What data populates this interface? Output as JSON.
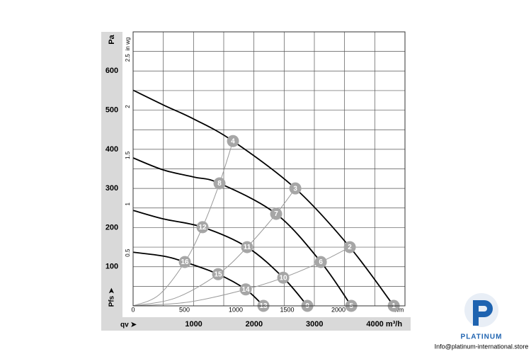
{
  "chart_data": {
    "type": "fan-curve",
    "y_label": "Pa",
    "y2_label": "in wg",
    "y_quantity": "Pfs ➤",
    "x_quantity": "qv ➤",
    "x2_label": "cfm",
    "xlim": [
      0,
      4500
    ],
    "ylim": [
      0,
      700
    ],
    "x2lim": [
      0,
      2648.6
    ],
    "y2lim": [
      0,
      2.81
    ],
    "xticks": [
      {
        "value": 1000,
        "label": "1000"
      },
      {
        "value": 2000,
        "label": "2000"
      },
      {
        "value": 3000,
        "label": "3000"
      },
      {
        "value": 4000,
        "label": "4000 m³/h"
      }
    ],
    "yticks": [
      100,
      200,
      300,
      400,
      500,
      600
    ],
    "x2ticks": [
      0,
      500,
      1000,
      1500,
      2000
    ],
    "y2ticks": [
      0.5,
      1,
      1.5,
      2,
      2.5
    ],
    "xgrid": [
      0,
      500,
      1000,
      1500,
      2000,
      2500,
      3000,
      3500,
      4000,
      4500
    ],
    "ygrid": [
      0,
      50,
      100,
      150,
      200,
      250,
      300,
      350,
      400,
      450,
      500,
      550,
      600,
      650,
      700
    ],
    "grid": true,
    "series": [
      {
        "color": "#000000",
        "x": [
          0,
          504,
          1008,
          1653,
          2685,
          3587,
          4314
        ],
        "values": [
          551,
          513,
          477,
          421,
          300,
          150,
          0
        ]
      },
      {
        "color": "#000000",
        "x": [
          0,
          504,
          1008,
          1430,
          2368,
          3107,
          3611
        ],
        "values": [
          378,
          347,
          329,
          313,
          235,
          112,
          0
        ]
      },
      {
        "color": "#000000",
        "x": [
          0,
          504,
          1149,
          1887,
          2485,
          2884
        ],
        "values": [
          244,
          222,
          201,
          150,
          72,
          0
        ]
      },
      {
        "color": "#000000",
        "x": [
          0,
          504,
          856,
          1407,
          1864,
          2157
        ],
        "values": [
          137,
          127,
          112,
          81,
          42,
          0
        ]
      }
    ],
    "system_curves": [
      {
        "color": "#9a9a9a",
        "x": [
          0,
          428,
          856,
          1149,
          1430,
          1653
        ],
        "values": [
          0,
          28,
          112,
          201,
          313,
          421
        ]
      },
      {
        "color": "#9a9a9a",
        "x": [
          0,
          700,
          1407,
          1887,
          2368,
          2685
        ],
        "values": [
          0,
          20,
          81,
          150,
          235,
          300
        ]
      },
      {
        "color": "#9a9a9a",
        "x": [
          0,
          930,
          1864,
          2485,
          3107,
          3587
        ],
        "values": [
          0,
          10,
          42,
          72,
          112,
          150
        ]
      }
    ],
    "marker_color": "#a6a6a6",
    "points": [
      {
        "label": "1",
        "x": 4314,
        "y": 0
      },
      {
        "label": "2",
        "x": 3587,
        "y": 150
      },
      {
        "label": "3",
        "x": 2685,
        "y": 300
      },
      {
        "label": "4",
        "x": 1653,
        "y": 421
      },
      {
        "label": "5",
        "x": 3611,
        "y": 0
      },
      {
        "label": "6",
        "x": 3107,
        "y": 112
      },
      {
        "label": "7",
        "x": 2368,
        "y": 235
      },
      {
        "label": "8",
        "x": 1430,
        "y": 313
      },
      {
        "label": "9",
        "x": 2884,
        "y": 0
      },
      {
        "label": "10",
        "x": 2485,
        "y": 72
      },
      {
        "label": "11",
        "x": 1887,
        "y": 150
      },
      {
        "label": "12",
        "x": 1149,
        "y": 201
      },
      {
        "label": "13",
        "x": 2157,
        "y": 0
      },
      {
        "label": "14",
        "x": 1864,
        "y": 42
      },
      {
        "label": "15",
        "x": 1407,
        "y": 81
      },
      {
        "label": "16",
        "x": 856,
        "y": 112
      }
    ]
  },
  "watermark": {
    "brand": "PLATINUM",
    "email": "Info@platinum-international.store"
  }
}
